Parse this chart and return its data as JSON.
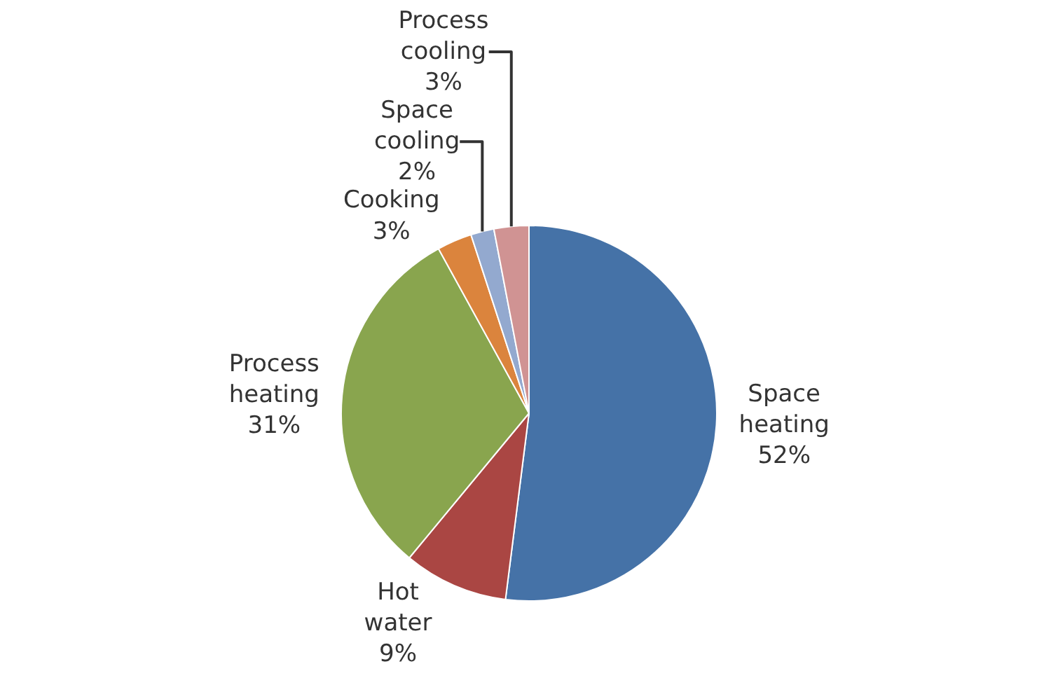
{
  "chart_data": {
    "type": "pie",
    "categories": [
      "Space heating",
      "Hot water",
      "Process heating",
      "Cooking",
      "Space cooling",
      "Process cooling"
    ],
    "values": [
      52,
      9,
      31,
      3,
      2,
      3
    ],
    "value_labels": [
      "52%",
      "9%",
      "31%",
      "3%",
      "2%",
      "3%"
    ],
    "colors": [
      "#4572a7",
      "#aa4643",
      "#89a54e",
      "#db843d",
      "#93a9cf",
      "#d09393"
    ],
    "legend": false
  }
}
